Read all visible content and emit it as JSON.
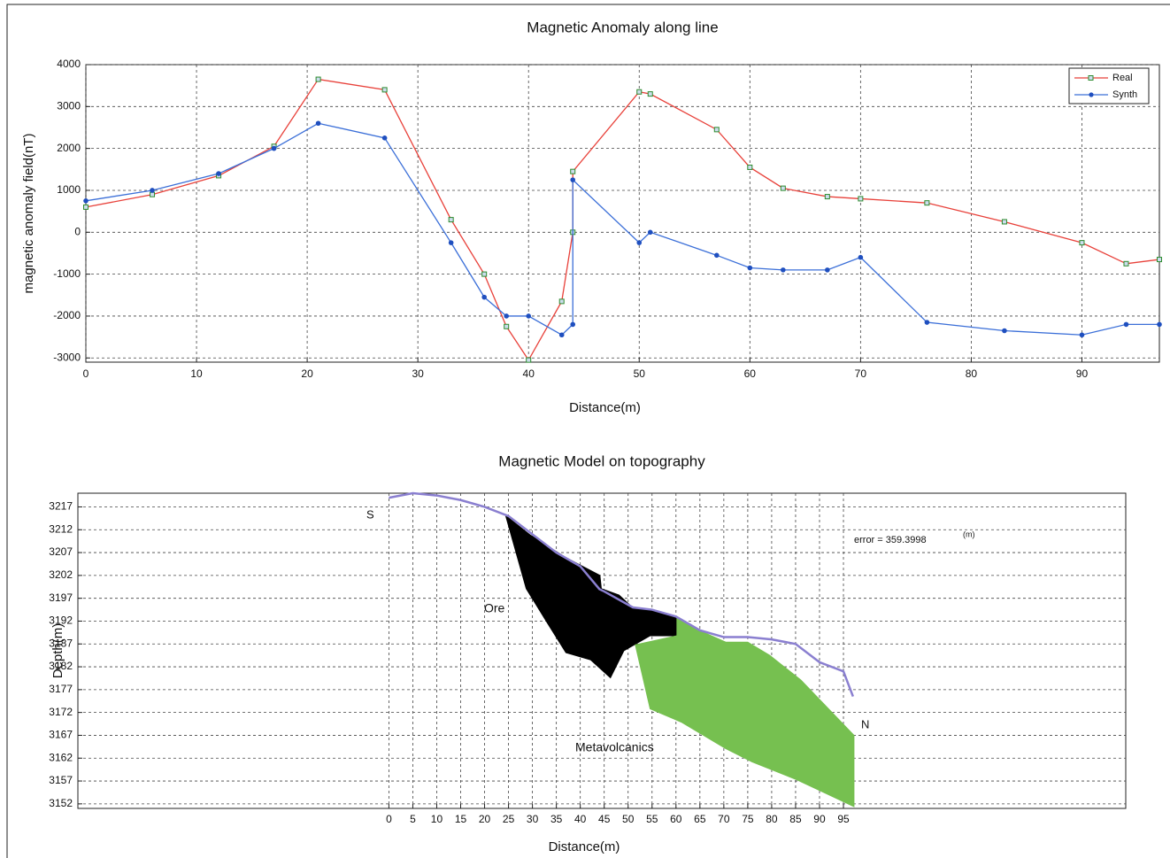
{
  "chart_data": [
    {
      "type": "line",
      "title": "Magnetic Anomaly along line",
      "xlabel": "Distance(m)",
      "ylabel": "magnetic anomaly field(nT)",
      "x": [
        0,
        6,
        12,
        17,
        21,
        27,
        33,
        36,
        38,
        40,
        43,
        44,
        44,
        50,
        51,
        57,
        60,
        63,
        67,
        70,
        76,
        83,
        90,
        94,
        97
      ],
      "series": [
        {
          "name": "Real",
          "color": "#e8413a",
          "marker": "square",
          "marker_color": "#2e8b2e",
          "values": [
            600,
            900,
            1350,
            2050,
            3650,
            3400,
            300,
            -1000,
            -2250,
            -3050,
            -1650,
            0,
            1450,
            3350,
            3300,
            2450,
            1550,
            1050,
            850,
            800,
            700,
            250,
            -250,
            -750,
            -650
          ]
        },
        {
          "name": "Synth",
          "color": "#3b6fd8",
          "marker": "circle",
          "marker_color": "#1f4fbf",
          "values": [
            750,
            1000,
            1400,
            2000,
            2600,
            2250,
            -250,
            -1550,
            -2000,
            -2000,
            -2450,
            -2200,
            1250,
            -250,
            0,
            -550,
            -850,
            -900,
            -900,
            -600,
            -2150,
            -2350,
            -2450,
            -2200,
            -2200
          ]
        }
      ],
      "xlim": [
        0,
        97
      ],
      "xticks": [
        0,
        10,
        20,
        30,
        40,
        50,
        60,
        70,
        80,
        90
      ],
      "ylim": [
        -3100,
        4000
      ],
      "yticks": [
        -3000,
        -2000,
        -1000,
        0,
        1000,
        2000,
        3000,
        4000
      ],
      "grid": true,
      "legend": "northeast"
    },
    {
      "type": "section",
      "title": "Magnetic Model on topography",
      "xlabel": "Distance(m)",
      "ylabel": "Depth(m)",
      "topography": {
        "color": "#8a7fd0",
        "x": [
          0,
          5,
          10,
          15,
          20,
          25,
          30,
          35,
          40,
          44,
          45,
          51,
          55,
          60,
          65,
          70,
          75,
          80,
          85,
          90,
          95,
          97
        ],
        "y": [
          3219,
          3220,
          3219.5,
          3218.5,
          3217,
          3215,
          3211,
          3207,
          3204,
          3199,
          3198.5,
          3195,
          3194.5,
          3193,
          3190,
          3188.5,
          3188.5,
          3188,
          3187,
          3183,
          3181,
          3175.5
        ]
      },
      "bodies": [
        {
          "label": "Ore",
          "color": "#000000",
          "x": [
            24.4,
            29.6,
            37.0,
            44.1,
            44.4,
            48.1,
            51.1,
            55.6,
            60.2,
            60.2,
            54.6,
            49.1,
            46.3,
            42.2,
            37.0,
            33.3,
            28.7
          ],
          "y": [
            3215.1,
            3210.8,
            3205.9,
            3202.0,
            3199.1,
            3197.7,
            3194.8,
            3194.2,
            3192.9,
            3188.8,
            3188.8,
            3185.5,
            3179.6,
            3183.5,
            3185.1,
            3191.3,
            3199.1
          ]
        },
        {
          "label": "Metavolcanics",
          "color": "#76c050",
          "x": [
            60.2,
            64.8,
            70.4,
            75.0,
            79.6,
            86.1,
            97.2,
            97.2,
            85.2,
            75.9,
            70.4,
            61.1,
            54.6,
            51.5,
            60.2
          ],
          "y": [
            3192.9,
            3190.0,
            3187.4,
            3187.4,
            3184.5,
            3179.1,
            3167.0,
            3151.4,
            3157.3,
            3161.2,
            3164.1,
            3169.9,
            3172.8,
            3186.8,
            3188.8
          ]
        }
      ],
      "annotations": [
        "S",
        "N"
      ],
      "error_label": "error = 359.3998",
      "error_unit": "(m)",
      "xlim": [
        -65,
        154
      ],
      "xticks": [
        0,
        5,
        10,
        15,
        20,
        25,
        30,
        35,
        40,
        45,
        50,
        55,
        60,
        65,
        70,
        75,
        80,
        85,
        90,
        95
      ],
      "ylim": [
        3151,
        3220
      ],
      "yticks": [
        3152,
        3157,
        3162,
        3167,
        3172,
        3177,
        3182,
        3187,
        3192,
        3197,
        3202,
        3207,
        3212,
        3217
      ],
      "grid": true
    }
  ]
}
